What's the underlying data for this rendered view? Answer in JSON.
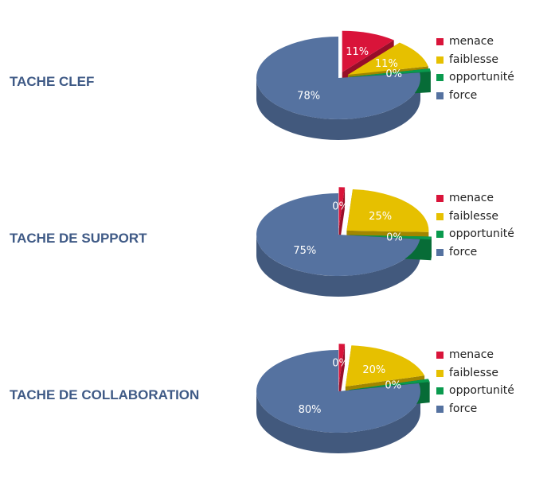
{
  "colors": {
    "menace": "#d9143a",
    "faiblesse": "#e6c000",
    "opportunite": "#0a9a4e",
    "force": "#5572a0",
    "title": "#3f5a86"
  },
  "chart_data": [
    {
      "type": "pie",
      "title": "TACHE CLEF",
      "categories": [
        "menace",
        "faiblesse",
        "opportunité",
        "force"
      ],
      "values": [
        11,
        11,
        0,
        78
      ],
      "labels": [
        "11%",
        "11%",
        "0%",
        "78%"
      ],
      "legend": "right"
    },
    {
      "type": "pie",
      "title": "TACHE DE SUPPORT",
      "categories": [
        "menace",
        "faiblesse",
        "opportunité",
        "force"
      ],
      "values": [
        0,
        25,
        0,
        75
      ],
      "labels": [
        "0%",
        "25%",
        "0%",
        "75%"
      ],
      "legend": "right"
    },
    {
      "type": "pie",
      "title": "TACHE DE COLLABORATION",
      "categories": [
        "menace",
        "faiblesse",
        "opportunité",
        "force"
      ],
      "values": [
        0,
        20,
        0,
        80
      ],
      "labels": [
        "0%",
        "20%",
        "0%",
        "80%"
      ],
      "legend": "right"
    }
  ]
}
